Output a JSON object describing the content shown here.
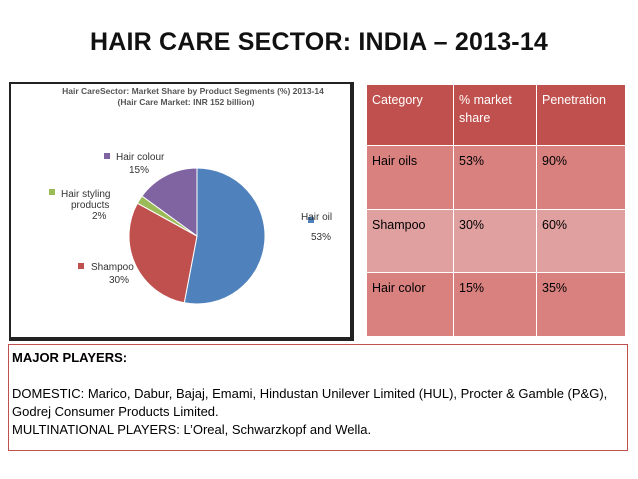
{
  "slide": {
    "title": "HAIR CARE SECTOR: INDIA – 2013-14"
  },
  "chart_data": {
    "type": "pie",
    "title": "Hair CareSector: Market Share by Product Segments (%) 2013-14",
    "subtitle": "(Hair Care Market: INR 152 billion)",
    "series": [
      {
        "name": "Hair oil",
        "label": "Hair oil",
        "value": 53,
        "value_text": "53%",
        "color": "#4f81bd"
      },
      {
        "name": "Shampoo",
        "label": "Shampoo",
        "value": 30,
        "value_text": "30%",
        "color": "#c0504d"
      },
      {
        "name": "Hair styling products",
        "label_lines": [
          "Hair styling",
          "products"
        ],
        "value": 2,
        "value_text": "2%",
        "color": "#9bbb59"
      },
      {
        "name": "Hair colour",
        "label": "Hair colour",
        "value": 15,
        "value_text": "15%",
        "color": "#8064a2"
      }
    ]
  },
  "table": {
    "headers": [
      "Category",
      "% market share",
      "Penetration"
    ],
    "rows": [
      [
        "Hair oils",
        "53%",
        "90%"
      ],
      [
        "Shampoo",
        "30%",
        "60%"
      ],
      [
        "Hair color",
        "15%",
        "35%"
      ]
    ]
  },
  "players": {
    "heading": "MAJOR PLAYERS:",
    "domestic": "DOMESTIC: Marico, Dabur, Bajaj, Emami, Hindustan Unilever Limited (HUL), Procter & Gamble (P&G), Godrej Consumer Products Limited.",
    "multinational": "MULTINATIONAL  PLAYERS: L’Oreal, Schwarzkopf and Wella."
  }
}
